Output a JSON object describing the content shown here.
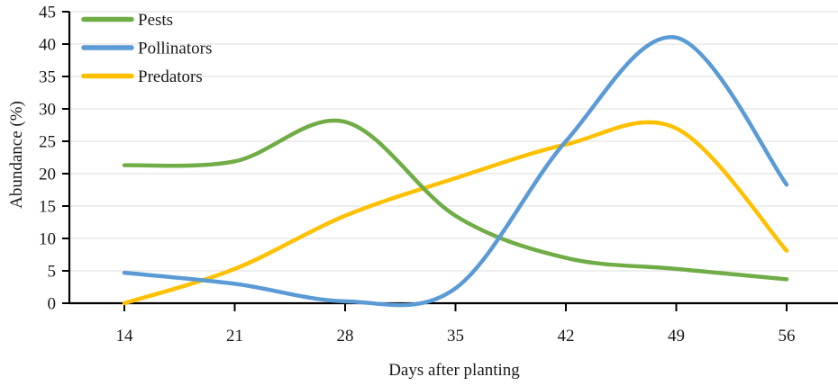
{
  "chart_data": {
    "type": "line",
    "title": "",
    "xlabel": "Days after planting",
    "ylabel": "Abundance (%)",
    "x": [
      14,
      21,
      28,
      35,
      42,
      49,
      56
    ],
    "series": [
      {
        "name": "Pests",
        "color": "#70AD47",
        "values": [
          21.3,
          21.9,
          28.0,
          13.5,
          7.0,
          5.3,
          3.7
        ]
      },
      {
        "name": "Pollinators",
        "color": "#5B9BD5",
        "values": [
          4.7,
          3.0,
          0.3,
          2.3,
          25.0,
          41.0,
          18.3
        ]
      },
      {
        "name": "Predators",
        "color": "#FFC000",
        "values": [
          0.0,
          5.3,
          13.5,
          19.3,
          24.5,
          27.0,
          8.1
        ]
      }
    ],
    "ylim": [
      0,
      45
    ],
    "ytick_step": 5,
    "yticks": [
      0,
      5,
      10,
      15,
      20,
      25,
      30,
      35,
      40,
      45
    ],
    "xticks": [
      "14",
      "21",
      "28",
      "35",
      "42",
      "49",
      "56"
    ],
    "grid": "horizontal",
    "legend_position": "top-left",
    "colors": {
      "axis": "#000000",
      "gridline": "#dcdcdc",
      "text": "#1a1a1a"
    }
  }
}
